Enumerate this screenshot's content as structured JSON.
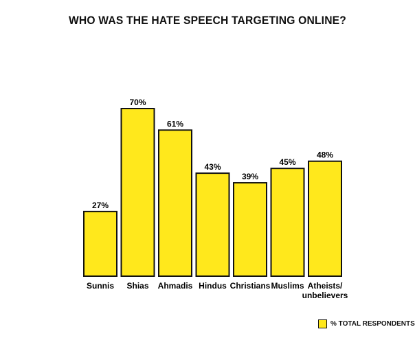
{
  "chart_data": {
    "type": "bar",
    "title": "WHO WAS THE HATE SPEECH TARGETING ONLINE?",
    "categories": [
      "Sunnis",
      "Shias",
      "Ahmadis",
      "Hindus",
      "Christians",
      "Muslims",
      "Atheists/\nunbelievers"
    ],
    "values": [
      27,
      70,
      61,
      43,
      39,
      45,
      48
    ],
    "value_labels": [
      "27%",
      "70%",
      "61%",
      "43%",
      "39%",
      "45%",
      "48%"
    ],
    "series": [
      {
        "name": "% TOTAL RESPONDENTS",
        "values": [
          27,
          70,
          61,
          43,
          39,
          45,
          48
        ]
      }
    ],
    "xlabel": "",
    "ylabel": "",
    "ylim": [
      0,
      70
    ],
    "grid": false,
    "legend_position": "bottom-right",
    "bar_color": "#ffe81c",
    "edge_color": "#111111"
  }
}
